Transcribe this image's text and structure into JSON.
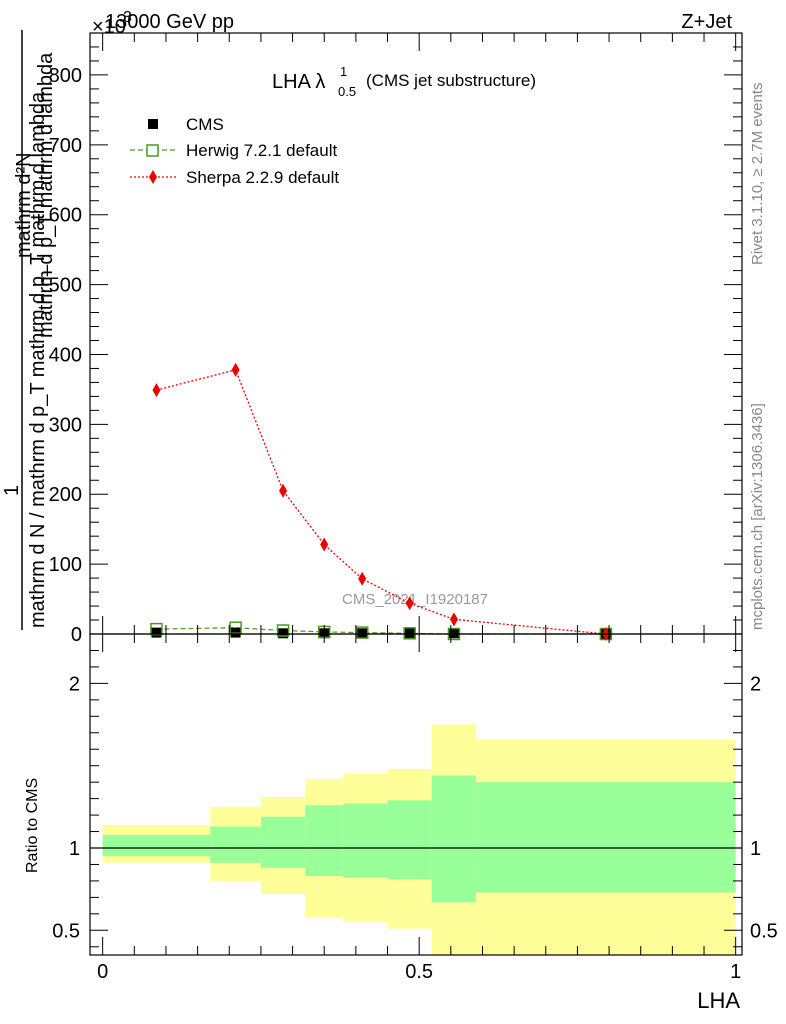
{
  "header": {
    "left": "13000 GeV pp",
    "right": "Z+Jet",
    "exponent": "×10",
    "exponent_power": "3"
  },
  "title": {
    "main": "LHA λ",
    "sup": "1",
    "sub": "0.5",
    "suffix": "(CMS jet substructure)"
  },
  "side_labels": {
    "rivet": "Rivet 3.1.10, ≥ 2.7M events",
    "mcplots": "mcplots.cern.ch [arXiv:1306.3436]"
  },
  "watermark": "CMS_2021_I1920187",
  "colors": {
    "herwig": "#4a9a1c",
    "sherpa": "#ee0000",
    "inner_band": "#99ff99",
    "outer_band": "#ffff99"
  },
  "chart_data": [
    {
      "type": "line",
      "panel": "main",
      "ylabel_numerator": "1",
      "ylabel_denominator": "mathrm d N / mathrm d p_T mathrm d p_T mathrm d lambda",
      "ylabel_num_top": "mathrm d²N",
      "ylabel_den_top": "mathrm d p_T mathrm d lambda",
      "ylim": [
        0,
        860
      ],
      "yticks": [
        0,
        100,
        200,
        300,
        400,
        500,
        600,
        700,
        800
      ],
      "xlim": [
        -0.02,
        1.01
      ],
      "legend_position": "top-left",
      "series": [
        {
          "name": "CMS",
          "marker": "filled-square",
          "x": [
            0.085,
            0.21,
            0.285,
            0.35,
            0.41,
            0.485,
            0.555,
            0.795
          ],
          "y": [
            2,
            2,
            1,
            1,
            1,
            1,
            1,
            0
          ]
        },
        {
          "name": "Herwig 7.2.1 default",
          "marker": "open-square",
          "line": "dashed",
          "x": [
            0.085,
            0.21,
            0.285,
            0.35,
            0.41,
            0.485,
            0.555,
            0.795
          ],
          "y": [
            7,
            9,
            5,
            3,
            2,
            1,
            0,
            0
          ]
        },
        {
          "name": "Sherpa 2.2.9 default",
          "marker": "diamond",
          "line": "dotted",
          "x": [
            0.085,
            0.21,
            0.285,
            0.35,
            0.41,
            0.485,
            0.555,
            0.795
          ],
          "y": [
            349,
            378,
            205,
            128,
            79,
            44,
            21,
            0
          ]
        }
      ]
    },
    {
      "type": "area",
      "panel": "ratio",
      "ylabel": "Ratio to CMS",
      "xlabel": "LHA",
      "xlim": [
        -0.02,
        1.01
      ],
      "ylim": [
        0.35,
        2.3
      ],
      "yticks": [
        0.5,
        1,
        2
      ],
      "ytick_labels": [
        "0.5",
        "1",
        "2"
      ],
      "xticks": [
        0,
        0.5,
        1
      ],
      "xtick_labels": [
        "0",
        "0.5",
        "1"
      ],
      "reference_line": 1,
      "bins": [
        {
          "x0": 0.0,
          "x1": 0.17,
          "inner": [
            0.95,
            1.08
          ],
          "outer": [
            0.91,
            1.14
          ]
        },
        {
          "x0": 0.17,
          "x1": 0.25,
          "inner": [
            0.91,
            1.13
          ],
          "outer": [
            0.8,
            1.25
          ]
        },
        {
          "x0": 0.25,
          "x1": 0.32,
          "inner": [
            0.88,
            1.19
          ],
          "outer": [
            0.72,
            1.31
          ]
        },
        {
          "x0": 0.32,
          "x1": 0.38,
          "inner": [
            0.83,
            1.26
          ],
          "outer": [
            0.58,
            1.42
          ]
        },
        {
          "x0": 0.38,
          "x1": 0.45,
          "inner": [
            0.82,
            1.27
          ],
          "outer": [
            0.55,
            1.45
          ]
        },
        {
          "x0": 0.45,
          "x1": 0.52,
          "inner": [
            0.81,
            1.29
          ],
          "outer": [
            0.51,
            1.48
          ]
        },
        {
          "x0": 0.52,
          "x1": 0.59,
          "inner": [
            0.67,
            1.44
          ],
          "outer": [
            0.33,
            1.75
          ]
        },
        {
          "x0": 0.59,
          "x1": 1.0,
          "inner": [
            0.73,
            1.4
          ],
          "outer": [
            0.33,
            1.66
          ]
        }
      ]
    }
  ]
}
